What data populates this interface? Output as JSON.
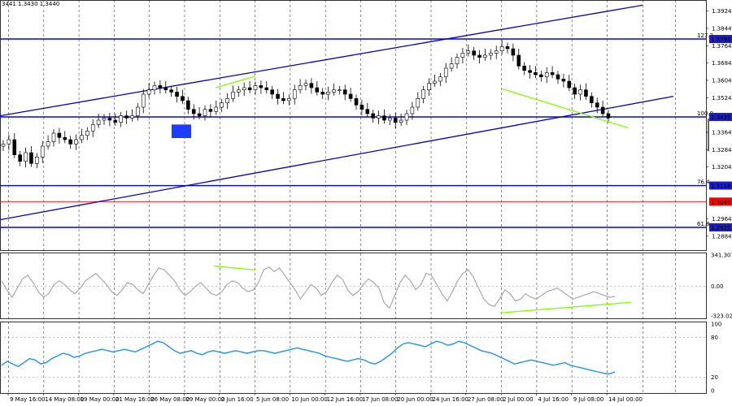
{
  "header": {
    "quote": "3441 1.3430 1.3440"
  },
  "chart_data": [
    {
      "type": "candlestick",
      "panel": "price",
      "ylim": [
        1.282,
        1.3975
      ],
      "y_ticks": [
        "1.3924",
        "1.3844",
        "1.3764",
        "1.3684",
        "1.3604",
        "1.3524",
        "1.3364",
        "1.3284",
        "1.3204",
        "1.2964",
        "1.2884"
      ],
      "levels": [
        {
          "pct": "127.2",
          "value": "1.3795",
          "color": "#0000ff",
          "badge": "#1c1cc8"
        },
        {
          "pct": "100.0",
          "value": "1.3435",
          "color": "#0000ff",
          "badge": "#1c1cc8"
        },
        {
          "pct": "76.4",
          "value": "1.3118",
          "color": "#0000ff",
          "badge": "#1c1cc8"
        },
        {
          "pct": "",
          "value": "1.3044",
          "color": "#ff0000",
          "badge": "#ff0000"
        },
        {
          "pct": "61.8",
          "value": "1.2925",
          "color": "#0000ff",
          "badge": "#1c1cc8"
        }
      ],
      "last_price": 1.3427,
      "series": [
        {
          "values": [
            1.331,
            1.333,
            1.326,
            1.323,
            1.327,
            1.322,
            1.325,
            1.33,
            1.332,
            1.336,
            1.334,
            1.333,
            1.331,
            1.333,
            1.335,
            1.337,
            1.34,
            1.342,
            1.343,
            1.342,
            1.341,
            1.344,
            1.343,
            1.344,
            1.348,
            1.354,
            1.356,
            1.358,
            1.357,
            1.356,
            1.355,
            1.353,
            1.351,
            1.347,
            1.345,
            1.344,
            1.347,
            1.346,
            1.348,
            1.35,
            1.352,
            1.355,
            1.356,
            1.357,
            1.356,
            1.358,
            1.357,
            1.356,
            1.354,
            1.352,
            1.351,
            1.352,
            1.356,
            1.358,
            1.359,
            1.357,
            1.355,
            1.354,
            1.355,
            1.356,
            1.356,
            1.354,
            1.352,
            1.349,
            1.347,
            1.345,
            1.343,
            1.344,
            1.342,
            1.343,
            1.341,
            1.342,
            1.345,
            1.348,
            1.352,
            1.356,
            1.359,
            1.36,
            1.362,
            1.366,
            1.368,
            1.371,
            1.373,
            1.374,
            1.372,
            1.371,
            1.372,
            1.373,
            1.374,
            1.376,
            1.375,
            1.372,
            1.367,
            1.365,
            1.364,
            1.363,
            1.362,
            1.364,
            1.363,
            1.361,
            1.36,
            1.357,
            1.354,
            1.356,
            1.353,
            1.35,
            1.348,
            1.345,
            1.343
          ]
        }
      ],
      "channel": {
        "upper": [
          [
            1.344,
            1.3951
          ]
        ],
        "lower": [
          [
            1.296,
            1.353
          ]
        ]
      },
      "trendlines": [
        {
          "color": "#7fff00",
          "values": [
            1.357,
            1.3622
          ]
        },
        {
          "color": "#7fff00",
          "values": [
            1.3565,
            1.3385
          ]
        }
      ],
      "highlight": {
        "color": "#1c3cff"
      }
    },
    {
      "type": "line",
      "panel": "cci",
      "y_ticks": [
        "341.3079",
        "0.00",
        "-323.021"
      ],
      "ylim": [
        -323.021,
        341.3079
      ],
      "series_color": "#a9a9a9",
      "series": [
        {
          "values": [
            60,
            -40,
            -120,
            -20,
            80,
            120,
            40,
            -60,
            -120,
            -80,
            20,
            60,
            20,
            -40,
            -80,
            -20,
            60,
            100,
            140,
            80,
            20,
            -60,
            -100,
            -40,
            40,
            20,
            -40,
            -80,
            20,
            120,
            200,
            180,
            120,
            60,
            -40,
            -100,
            -60,
            0,
            40,
            -20,
            -80,
            -100,
            -60,
            20,
            60,
            40,
            -20,
            -60,
            -40,
            40,
            180,
            210,
            160,
            200,
            120,
            40,
            -40,
            -140,
            -60,
            20,
            -20,
            -100,
            -60,
            40,
            120,
            80,
            -40,
            -100,
            -60,
            20,
            80,
            40,
            -20,
            -180,
            -240,
            -100,
            40,
            120,
            60,
            -40,
            20,
            140,
            120,
            20,
            -80,
            -160,
            -60,
            60,
            140,
            180,
            100,
            -20,
            -140,
            -200,
            -220,
            -140,
            -40,
            -80,
            -160,
            -140,
            -80,
            -120,
            -140,
            -100,
            -60,
            -40,
            -20,
            -60,
            -100,
            -140,
            -120,
            -100,
            -80,
            -60,
            -80,
            -100,
            -120,
            -110
          ]
        }
      ],
      "trendlines": [
        {
          "color": "#7fff00",
          "values": [
            220,
            180
          ]
        },
        {
          "color": "#7fff00",
          "values": [
            -290,
            -175
          ]
        }
      ]
    },
    {
      "type": "line",
      "panel": "rsi",
      "y_ticks": [
        "100",
        "80",
        "20",
        "0"
      ],
      "ylim": [
        0,
        100
      ],
      "series_color": "#1e90ff",
      "series": [
        {
          "values": [
            38,
            44,
            40,
            36,
            42,
            48,
            46,
            40,
            42,
            48,
            52,
            56,
            54,
            50,
            52,
            56,
            58,
            60,
            62,
            60,
            58,
            60,
            62,
            60,
            58,
            62,
            66,
            70,
            74,
            72,
            66,
            60,
            56,
            58,
            60,
            56,
            54,
            58,
            60,
            58,
            56,
            58,
            60,
            58,
            56,
            58,
            60,
            60,
            58,
            56,
            58,
            60,
            62,
            64,
            62,
            60,
            58,
            56,
            52,
            50,
            48,
            46,
            44,
            46,
            48,
            46,
            42,
            40,
            44,
            50,
            56,
            64,
            70,
            72,
            70,
            68,
            66,
            70,
            74,
            72,
            68,
            70,
            74,
            72,
            68,
            64,
            60,
            58,
            56,
            52,
            48,
            44,
            40,
            42,
            44,
            46,
            44,
            42,
            40,
            38,
            40,
            42,
            38,
            36,
            34,
            32,
            30,
            28,
            26,
            25,
            28
          ]
        }
      ]
    }
  ],
  "x_axis": {
    "labels": [
      "9 May 16:00",
      "14 May 08:00",
      "19 May 00:00",
      "21 May 16:00",
      "26 May 08:00",
      "29 May 00:00",
      "2 Jun 16:00",
      "5 Jun 08:00",
      "10 Jun 00:00",
      "12 Jun 16:00",
      "17 Jun 08:00",
      "20 Jun 00:00",
      "24 Jun 16:00",
      "27 Jun 08:00",
      "2 Jul 00:00",
      "4 Jul 16:00",
      "9 Jul 08:00",
      "14 Jul 00:00"
    ]
  }
}
